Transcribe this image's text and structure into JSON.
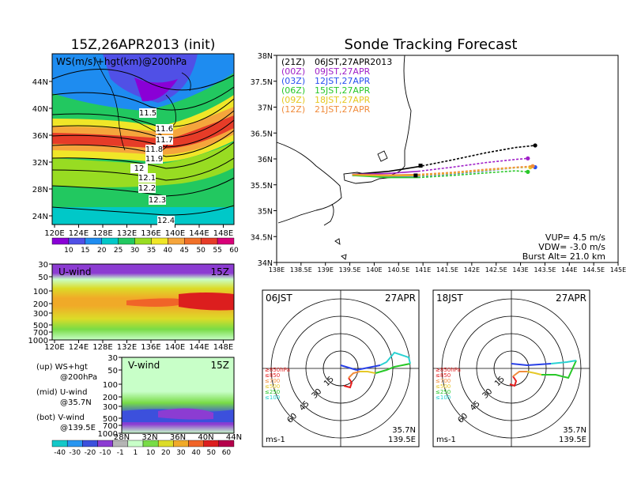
{
  "header": {
    "init_title": "15Z,26APR2013 (init)",
    "main_title": "Sonde Tracking Forecast"
  },
  "colors": {
    "speed_scale": [
      "#8a00d6",
      "#5050e6",
      "#1e8cf0",
      "#00c8c8",
      "#22c860",
      "#98dc22",
      "#f0e628",
      "#f5a53c",
      "#f07028",
      "#e63c28",
      "#d80078"
    ],
    "wind_scale": [
      "#14c8c8",
      "#2896f0",
      "#3c50dc",
      "#8c3cd2",
      "#b4b4b4",
      "#c8ffc8",
      "#78dc46",
      "#dcdc28",
      "#f0aa28",
      "#f06428",
      "#dc1e1e",
      "#b4004b"
    ],
    "track_21Z": "#000000",
    "track_00Z": "#a020c8",
    "track_03Z": "#2850f0",
    "track_06Z": "#28c828",
    "track_09Z": "#e6c820",
    "track_12Z": "#f08c3c",
    "hodo_850": "#e61e1e",
    "hodo_500": "#e6c828",
    "hodo_250": "#2ad2d2",
    "hodo_100": "#2840e6",
    "hodo_mid": "#28c828"
  },
  "upper_panel": {
    "label": "WS(m/s)+hgt(km)@200hPa",
    "x_ticks": [
      "120E",
      "124E",
      "128E",
      "132E",
      "136E",
      "140E",
      "144E",
      "148E"
    ],
    "y_ticks": [
      "44N",
      "40N",
      "36N",
      "32N",
      "28N",
      "24N"
    ],
    "contour_labels": [
      "11.5",
      "11.6",
      "11.7",
      "11.8",
      "11.9",
      "12",
      "12.1",
      "12.2",
      "12.3",
      "12.4"
    ]
  },
  "speed_colorbar": {
    "labels": [
      "10",
      "15",
      "20",
      "25",
      "30",
      "35",
      "40",
      "45",
      "50",
      "55",
      "60"
    ]
  },
  "u_panel": {
    "label": "U-wind",
    "time": "15Z",
    "y_ticks": [
      "30",
      "50",
      "100",
      "200",
      "300",
      "500",
      "700",
      "1000"
    ],
    "x_ticks": [
      "120E",
      "124E",
      "128E",
      "132E",
      "136E",
      "140E",
      "144E",
      "148E"
    ]
  },
  "v_panel": {
    "label": "V-wind",
    "time": "15Z",
    "y_ticks": [
      "30",
      "50",
      "100",
      "200",
      "300",
      "500",
      "700",
      "1000"
    ],
    "x_ticks": [
      "28N",
      "32N",
      "36N",
      "40N",
      "44N"
    ]
  },
  "notes": {
    "up": "(up) WS+hgt",
    "up_sub": "@200hPa",
    "mid": "(mid) U-wind",
    "mid_sub": "@35.7N",
    "bot": "(bot) V-wind",
    "bot_sub": "@139.5E"
  },
  "wind_colorbar": {
    "labels": [
      "-40",
      "-30",
      "-20",
      "-10",
      "-1",
      "1",
      "10",
      "20",
      "30",
      "40",
      "50",
      "60"
    ]
  },
  "map": {
    "y_ticks": [
      "38N",
      "37.5N",
      "37N",
      "36.5N",
      "36N",
      "35.5N",
      "35N",
      "34.5N",
      "34N"
    ],
    "x_ticks": [
      "138E",
      "138.5E",
      "139E",
      "139.5E",
      "140E",
      "140.5E",
      "141E",
      "141.5E",
      "142E",
      "142.5E",
      "143E",
      "143.5E",
      "144E",
      "144.5E",
      "145E"
    ],
    "legend": [
      {
        "code": "(21Z)",
        "time": "06JST,27APR2013"
      },
      {
        "code": "(00Z)",
        "time": "09JST,27APR"
      },
      {
        "code": "(03Z)",
        "time": "12JST,27APR"
      },
      {
        "code": "(06Z)",
        "time": "15JST,27APR"
      },
      {
        "code": "(09Z)",
        "time": "18JST,27APR"
      },
      {
        "code": "(12Z)",
        "time": "21JST,27APR"
      }
    ],
    "params": {
      "vup": "VUP= 4.5 m/s",
      "vdw": "VDW= -3.0 m/s",
      "burst": "Burst Alt= 21.0 km"
    }
  },
  "hodo_left": {
    "time": "06JST",
    "date": "27APR",
    "rings": [
      "15",
      "30",
      "45",
      "60"
    ],
    "loc_lat": "35.7N",
    "loc_lon": "139.5E",
    "unit": "ms-1"
  },
  "hodo_right": {
    "time": "18JST",
    "date": "27APR",
    "rings": [
      "15",
      "30",
      "45",
      "60"
    ],
    "loc_lat": "35.7N",
    "loc_lon": "139.5E",
    "unit": "ms-1"
  },
  "hodo_legend": [
    "≥850hPa",
    "≤850",
    "≤700",
    "≤500",
    "≤250",
    "≤100"
  ],
  "chart_data": [
    {
      "type": "heatmap",
      "name": "200hPa wind speed and geopotential height",
      "title": "WS(m/s)+hgt(km)@200hPa",
      "x_range": [
        120,
        150
      ],
      "y_range": [
        22,
        48
      ],
      "colorbar": [
        10,
        15,
        20,
        25,
        30,
        35,
        40,
        45,
        50,
        55,
        60
      ],
      "height_contours_km": [
        11.5,
        11.6,
        11.7,
        11.8,
        11.9,
        12.0,
        12.1,
        12.2,
        12.3,
        12.4
      ],
      "jet_axis_lat_by_lon": {
        "x": [
          120,
          126,
          132,
          138,
          144,
          150
        ],
        "lat": [
          30,
          30,
          31,
          33,
          34,
          35
        ]
      }
    },
    {
      "type": "heatmap",
      "title": "U-wind",
      "x_range": [
        120,
        150
      ],
      "y_levels_hPa": [
        30,
        50,
        100,
        200,
        300,
        500,
        700,
        1000
      ],
      "colorbar": [
        -40,
        -30,
        -20,
        -10,
        -1,
        1,
        10,
        20,
        30,
        40,
        50,
        60
      ]
    },
    {
      "type": "heatmap",
      "title": "V-wind",
      "x_range": [
        28,
        44
      ],
      "y_levels_hPa": [
        30,
        50,
        100,
        200,
        300,
        500,
        700,
        1000
      ],
      "colorbar": [
        -40,
        -30,
        -20,
        -10,
        -1,
        1,
        10,
        20,
        30,
        40,
        50,
        60
      ]
    },
    {
      "type": "line",
      "title": "Sonde Tracking Forecast",
      "x_range": [
        138,
        145
      ],
      "y_range": [
        34,
        38
      ],
      "launch": {
        "lon": 139.55,
        "lat": 35.7
      },
      "series": [
        {
          "name": "(21Z)",
          "x": [
            139.55,
            140.3,
            140.9,
            141.6,
            142.3,
            142.9,
            143.3
          ],
          "y": [
            35.7,
            35.76,
            35.85,
            35.98,
            36.12,
            36.22,
            36.26
          ]
        },
        {
          "name": "(00Z)",
          "x": [
            139.55,
            140.3,
            140.9,
            141.6,
            142.3,
            142.9,
            143.15
          ],
          "y": [
            35.7,
            35.72,
            35.76,
            35.84,
            35.93,
            35.99,
            36.01
          ]
        },
        {
          "name": "(03Z)",
          "x": [
            139.55,
            140.3,
            140.9,
            141.6,
            142.3,
            142.9,
            143.3
          ],
          "y": [
            35.68,
            35.66,
            35.67,
            35.71,
            35.77,
            35.83,
            35.84
          ]
        },
        {
          "name": "(06Z)",
          "x": [
            139.55,
            140.3,
            140.9,
            141.6,
            142.3,
            142.9,
            143.15
          ],
          "y": [
            35.68,
            35.64,
            35.64,
            35.68,
            35.73,
            35.77,
            35.75
          ]
        },
        {
          "name": "(09Z)",
          "x": [
            139.55,
            140.3,
            140.9,
            141.6,
            142.3,
            142.9,
            143.2
          ],
          "y": [
            35.69,
            35.67,
            35.68,
            35.72,
            35.78,
            35.83,
            35.84
          ]
        },
        {
          "name": "(12Z)",
          "x": [
            139.55,
            140.3,
            140.9,
            141.6,
            142.3,
            142.9,
            143.25
          ],
          "y": [
            35.7,
            35.69,
            35.7,
            35.74,
            35.8,
            35.84,
            35.86
          ]
        }
      ],
      "burst_markers": [
        {
          "lon": 140.95,
          "lat": 35.87
        },
        {
          "lon": 140.85,
          "lat": 35.68
        }
      ]
    }
  ]
}
